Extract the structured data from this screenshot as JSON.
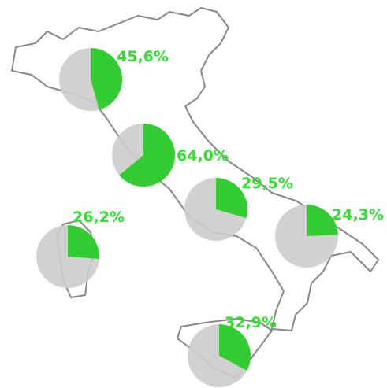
{
  "pies": [
    {
      "value": 45.6,
      "label": "45,6%"
    },
    {
      "value": 64.0,
      "label": "64,0%"
    },
    {
      "value": 29.5,
      "label": "29,5%"
    },
    {
      "value": 24.3,
      "label": "24,3%"
    },
    {
      "value": 26.2,
      "label": "26,2%"
    },
    {
      "value": 32.9,
      "label": "32,9%"
    }
  ]
}
